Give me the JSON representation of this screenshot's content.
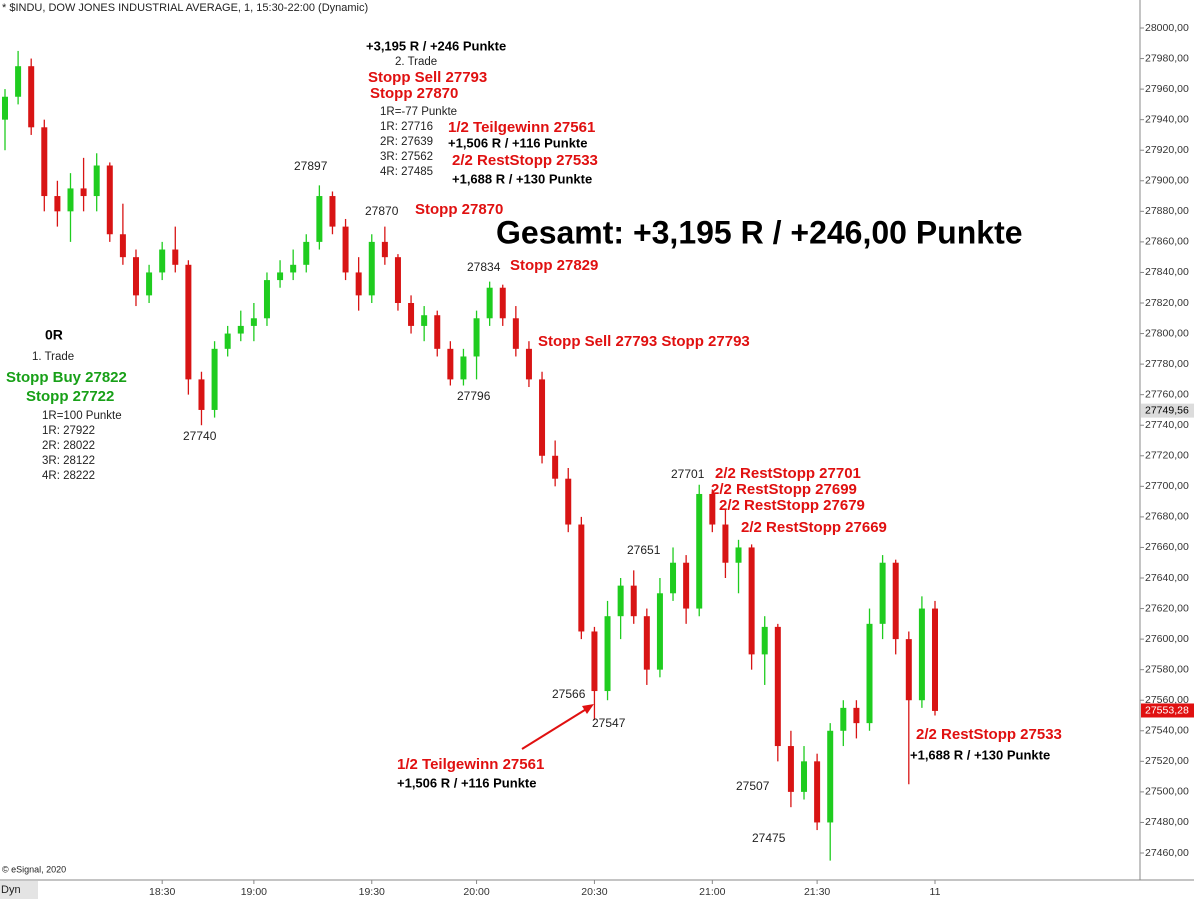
{
  "chart_data": {
    "type": "candlestick",
    "title": "* $INDU, DOW JONES INDUSTRIAL AVERAGE, 1, 15:30-22:00 (Dynamic)",
    "credit": "© eSignal, 2020",
    "corner_label": "Dyn",
    "up_color": "#1fcc1f",
    "down_color": "#d81414",
    "categories": [
      null,
      null,
      null,
      null,
      null,
      null,
      null,
      null,
      null,
      null,
      null,
      null,
      "18:30",
      null,
      null,
      null,
      null,
      null,
      null,
      "19:00",
      null,
      null,
      null,
      null,
      null,
      null,
      null,
      null,
      "19:30",
      null,
      null,
      null,
      null,
      null,
      null,
      null,
      "20:00",
      null,
      null,
      null,
      null,
      null,
      null,
      null,
      null,
      "20:30",
      null,
      null,
      null,
      null,
      null,
      null,
      null,
      null,
      "21:00",
      null,
      null,
      null,
      null,
      null,
      null,
      null,
      "21:30",
      null,
      null,
      null,
      null,
      null,
      null,
      null,
      null,
      "11"
    ],
    "candles": [
      [
        27940,
        27960,
        27920,
        27955
      ],
      [
        27955,
        27985,
        27950,
        27975
      ],
      [
        27975,
        27980,
        27930,
        27935
      ],
      [
        27935,
        27940,
        27880,
        27890
      ],
      [
        27890,
        27900,
        27870,
        27880
      ],
      [
        27880,
        27905,
        27860,
        27895
      ],
      [
        27895,
        27915,
        27880,
        27890
      ],
      [
        27890,
        27918,
        27880,
        27910
      ],
      [
        27910,
        27912,
        27860,
        27865
      ],
      [
        27865,
        27885,
        27845,
        27850
      ],
      [
        27850,
        27855,
        27818,
        27825
      ],
      [
        27825,
        27845,
        27820,
        27840
      ],
      [
        27840,
        27860,
        27835,
        27855
      ],
      [
        27855,
        27870,
        27840,
        27845
      ],
      [
        27845,
        27848,
        27760,
        27770
      ],
      [
        27770,
        27775,
        27740,
        27750
      ],
      [
        27750,
        27795,
        27745,
        27790
      ],
      [
        27790,
        27805,
        27785,
        27800
      ],
      [
        27800,
        27815,
        27795,
        27805
      ],
      [
        27805,
        27820,
        27795,
        27810
      ],
      [
        27810,
        27840,
        27805,
        27835
      ],
      [
        27835,
        27848,
        27830,
        27840
      ],
      [
        27840,
        27855,
        27835,
        27845
      ],
      [
        27845,
        27865,
        27840,
        27860
      ],
      [
        27860,
        27897,
        27855,
        27890
      ],
      [
        27890,
        27893,
        27865,
        27870
      ],
      [
        27870,
        27875,
        27835,
        27840
      ],
      [
        27840,
        27850,
        27815,
        27825
      ],
      [
        27825,
        27865,
        27820,
        27860
      ],
      [
        27860,
        27870,
        27845,
        27850
      ],
      [
        27850,
        27852,
        27815,
        27820
      ],
      [
        27820,
        27825,
        27800,
        27805
      ],
      [
        27805,
        27818,
        27795,
        27812
      ],
      [
        27812,
        27815,
        27785,
        27790
      ],
      [
        27790,
        27795,
        27766,
        27770
      ],
      [
        27770,
        27790,
        27766,
        27785
      ],
      [
        27785,
        27815,
        27770,
        27810
      ],
      [
        27810,
        27834,
        27805,
        27830
      ],
      [
        27830,
        27832,
        27805,
        27810
      ],
      [
        27810,
        27818,
        27785,
        27790
      ],
      [
        27790,
        27795,
        27765,
        27770
      ],
      [
        27770,
        27775,
        27715,
        27720
      ],
      [
        27720,
        27730,
        27700,
        27705
      ],
      [
        27705,
        27712,
        27670,
        27675
      ],
      [
        27675,
        27680,
        27600,
        27605
      ],
      [
        27605,
        27608,
        27547,
        27566
      ],
      [
        27566,
        27625,
        27560,
        27615
      ],
      [
        27615,
        27640,
        27600,
        27635
      ],
      [
        27635,
        27645,
        27610,
        27615
      ],
      [
        27615,
        27620,
        27570,
        27580
      ],
      [
        27580,
        27640,
        27575,
        27630
      ],
      [
        27630,
        27660,
        27625,
        27650
      ],
      [
        27650,
        27655,
        27610,
        27620
      ],
      [
        27620,
        27701,
        27615,
        27695
      ],
      [
        27695,
        27698,
        27670,
        27675
      ],
      [
        27675,
        27685,
        27640,
        27650
      ],
      [
        27650,
        27665,
        27630,
        27660
      ],
      [
        27660,
        27662,
        27580,
        27590
      ],
      [
        27590,
        27615,
        27570,
        27608
      ],
      [
        27608,
        27610,
        27520,
        27530
      ],
      [
        27530,
        27540,
        27490,
        27500
      ],
      [
        27500,
        27530,
        27495,
        27520
      ],
      [
        27520,
        27525,
        27475,
        27480
      ],
      [
        27480,
        27545,
        27455,
        27540
      ],
      [
        27540,
        27560,
        27530,
        27555
      ],
      [
        27555,
        27560,
        27535,
        27545
      ],
      [
        27545,
        27620,
        27540,
        27610
      ],
      [
        27610,
        27655,
        27600,
        27650
      ],
      [
        27650,
        27652,
        27590,
        27600
      ],
      [
        27600,
        27605,
        27505,
        27560
      ],
      [
        27560,
        27628,
        27555,
        27620
      ],
      [
        27620,
        27625,
        27550,
        27553
      ]
    ],
    "ylim": [
      27444,
      28018
    ],
    "yticks": [
      {
        "value": 28000,
        "label": "28000,00"
      },
      {
        "value": 27980,
        "label": "27980,00"
      },
      {
        "value": 27960,
        "label": "27960,00"
      },
      {
        "value": 27940,
        "label": "27940,00"
      },
      {
        "value": 27920,
        "label": "27920,00"
      },
      {
        "value": 27900,
        "label": "27900,00"
      },
      {
        "value": 27880,
        "label": "27880,00"
      },
      {
        "value": 27860,
        "label": "27860,00"
      },
      {
        "value": 27840,
        "label": "27840,00"
      },
      {
        "value": 27820,
        "label": "27820,00"
      },
      {
        "value": 27800,
        "label": "27800,00"
      },
      {
        "value": 27780,
        "label": "27780,00"
      },
      {
        "value": 27760,
        "label": "27760,00"
      },
      {
        "value": 27740,
        "label": "27740,00"
      },
      {
        "value": 27720,
        "label": "27720,00"
      },
      {
        "value": 27700,
        "label": "27700,00"
      },
      {
        "value": 27680,
        "label": "27680,00"
      },
      {
        "value": 27660,
        "label": "27660,00"
      },
      {
        "value": 27640,
        "label": "27640,00"
      },
      {
        "value": 27620,
        "label": "27620,00"
      },
      {
        "value": 27600,
        "label": "27600,00"
      },
      {
        "value": 27580,
        "label": "27580,00"
      },
      {
        "value": 27560,
        "label": "27560,00"
      },
      {
        "value": 27540,
        "label": "27540,00"
      },
      {
        "value": 27520,
        "label": "27520,00"
      },
      {
        "value": 27500,
        "label": "27500,00"
      },
      {
        "value": 27480,
        "label": "27480,00"
      },
      {
        "value": 27460,
        "label": "27460,00"
      }
    ],
    "price_marker": {
      "value": 27749.56,
      "label": "27749,56"
    },
    "last_price": {
      "value": 27553.28,
      "label": "27553,28"
    },
    "annotations": [
      "+3,195 R / +246 Punkte",
      "2. Trade",
      "Stopp Sell 27793",
      "Stopp 27870",
      "1R=-77 Punkte",
      "1R: 27716",
      "2R: 27639",
      "3R: 27562",
      "4R: 27485",
      "1/2 Teilgewinn 27561",
      "+1,506 R / +116 Punkte",
      "2/2 RestStopp 27533",
      "+1,688 R / +130 Punkte",
      "27897",
      "27870",
      "Stopp 27870",
      "Gesamt: +3,195 R / +246,00 Punkte",
      "27834",
      "Stopp 27829",
      "Stopp Sell 27793 Stopp 27793",
      "0R",
      "1. Trade",
      "Stopp Buy 27822",
      "Stopp 27722",
      "1R=100 Punkte",
      "1R: 27922",
      "2R: 28022",
      "3R: 28122",
      "4R: 28222",
      "27740",
      "27796",
      "27701",
      "2/2 RestStopp 27701",
      "2/2 RestStopp 27699",
      "2/2 RestStopp 27679",
      "2/2 RestStopp 27669",
      "27651",
      "27566",
      "27547",
      "1/2 Teilgewinn 27561",
      "+1,506 R / +116 Punkte",
      "27507",
      "27475",
      "2/2 RestStopp 27533",
      "+1,688 R / +130 Punkte"
    ]
  }
}
